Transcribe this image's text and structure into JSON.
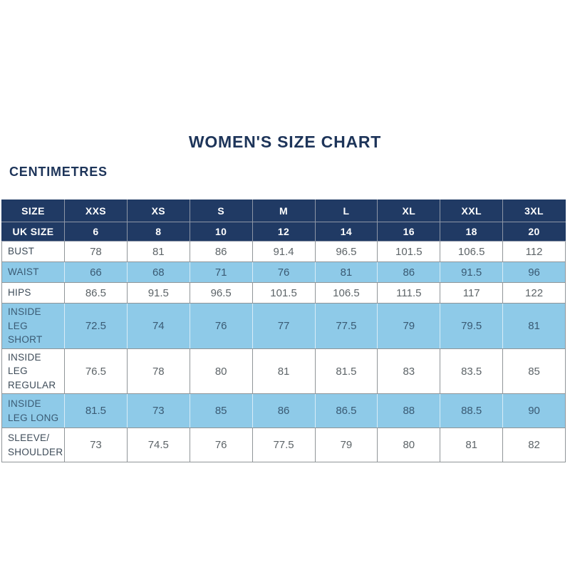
{
  "chart_data": {
    "type": "table",
    "title": "WOMEN'S SIZE CHART",
    "unit_label": "CENTIMETRES",
    "header_rows": [
      {
        "label": "SIZE",
        "values": [
          "XXS",
          "XS",
          "S",
          "M",
          "L",
          "XL",
          "XXL",
          "3XL"
        ]
      },
      {
        "label": "UK SIZE",
        "values": [
          "6",
          "8",
          "10",
          "12",
          "14",
          "16",
          "18",
          "20"
        ]
      }
    ],
    "rows": [
      {
        "label": "BUST",
        "highlight": false,
        "values": [
          "78",
          "81",
          "86",
          "91.4",
          "96.5",
          "101.5",
          "106.5",
          "112"
        ]
      },
      {
        "label": "WAIST",
        "highlight": true,
        "values": [
          "66",
          "68",
          "71",
          "76",
          "81",
          "86",
          "91.5",
          "96"
        ]
      },
      {
        "label": "HIPS",
        "highlight": false,
        "values": [
          "86.5",
          "91.5",
          "96.5",
          "101.5",
          "106.5",
          "111.5",
          "117",
          "122"
        ]
      },
      {
        "label": "INSIDE LEG SHORT",
        "highlight": true,
        "values": [
          "72.5",
          "74",
          "76",
          "77",
          "77.5",
          "79",
          "79.5",
          "81"
        ]
      },
      {
        "label": "INSIDE LEG REGULAR",
        "highlight": false,
        "values": [
          "76.5",
          "78",
          "80",
          "81",
          "81.5",
          "83",
          "83.5",
          "85"
        ]
      },
      {
        "label": "INSIDE LEG LONG",
        "highlight": true,
        "values": [
          "81.5",
          "73",
          "85",
          "86",
          "86.5",
          "88",
          "88.5",
          "90"
        ]
      },
      {
        "label": "SLEEVE/ SHOULDER",
        "highlight": false,
        "values": [
          "73",
          "74.5",
          "76",
          "77.5",
          "79",
          "80",
          "81",
          "82"
        ]
      }
    ]
  },
  "colors": {
    "title_navy": "#1d3459",
    "header_navy": "#203a64",
    "header_text": "#ffffff",
    "highlight_blue": "#8ecae8",
    "highlight_text": "#3a5a73",
    "row_text_gray": "#5d6468",
    "label_text": "#3d4b58",
    "border_gray": "#909598"
  }
}
